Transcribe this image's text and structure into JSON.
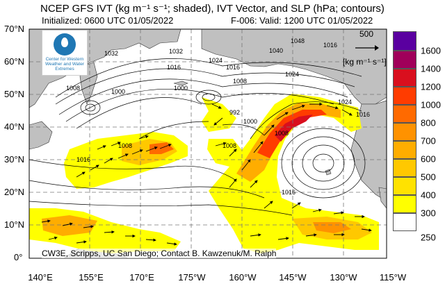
{
  "title": "NCEP GFS IVT (kg m⁻¹ s⁻¹; shaded), IVT Vector, and SLP (hPa; contours)",
  "initialized": "Initialized: 0600 UTC 01/05/2022",
  "valid": "F-006: Valid: 1200 UTC 01/05/2022",
  "credit": "CW3E, Scripps, UC San Diego; Contact B. Kawzenuk/M. Ralph",
  "logo": {
    "icon": "cw3e-logo-icon",
    "text": "Center for Western Weather and Water Extremes"
  },
  "lat_ticks": [
    "70°N",
    "60°N",
    "50°N",
    "40°N",
    "30°N",
    "20°N",
    "10°N",
    "0°"
  ],
  "lon_ticks": [
    "140°E",
    "155°E",
    "170°E",
    "175°W",
    "160°W",
    "145°W",
    "130°W",
    "115°W"
  ],
  "vector_ref": {
    "value": "500",
    "unit": "[kg m⁻¹ s⁻¹]",
    "icon": "arrow-right-icon"
  },
  "colorbar": {
    "levels": [
      "250",
      "300",
      "400",
      "500",
      "600",
      "700",
      "800",
      "1000",
      "1200",
      "1400",
      "1600"
    ],
    "colors": [
      "#ffffff",
      "#ffff00",
      "#ffe200",
      "#ffc800",
      "#ffad00",
      "#ff9200",
      "#ff6a00",
      "#ff3c00",
      "#d90f1e",
      "#a0005a",
      "#5a00a0",
      "#3a0070"
    ]
  },
  "slp_labels": [
    "1032",
    "1032",
    "1024",
    "1040",
    "1048",
    "1016",
    "1016",
    "1016",
    "1024",
    "1008",
    "1008",
    "1000",
    "1000",
    "992",
    "1000",
    "1008",
    "1008",
    "1016",
    "1016",
    "1024",
    "1016",
    "1008"
  ],
  "colors": {
    "land": "#c0c0c0",
    "ocean": "#ffffff",
    "grid": "#777777",
    "contour": "#000000"
  }
}
